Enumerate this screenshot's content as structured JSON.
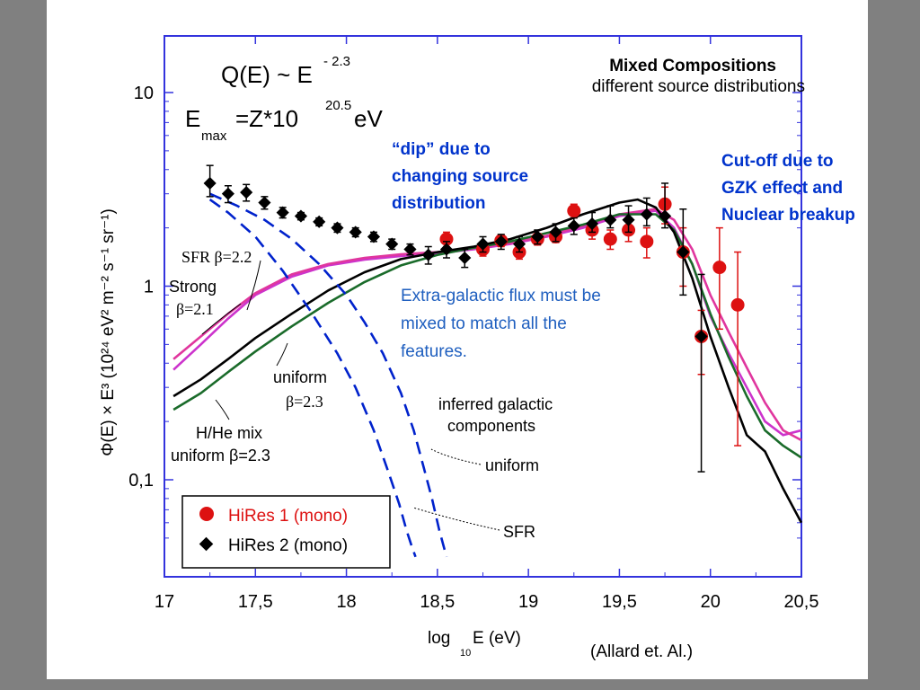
{
  "chart_data": {
    "type": "line",
    "title": "Mixed Compositions",
    "subtitle": "different source distributions",
    "formula_q": "Q(E) ~ E",
    "formula_q_exp": "- 2.3",
    "formula_emax_e": "E",
    "formula_emax_sub": "max",
    "formula_emax_rest": "=Z*10",
    "formula_emax_exp": "20.5",
    "formula_emax_unit": " eV",
    "xlabel": "log",
    "xlabel_sub": "10",
    "xlabel_rest": " E (eV)",
    "ylabel": "Φ(E) × E³ (10²⁴ eV² m⁻² s⁻¹ sr⁻¹)",
    "xlim": [
      17,
      20.5
    ],
    "ylim": [
      0.04,
      15
    ],
    "yscale": "log",
    "xticks": [
      {
        "value": 17,
        "label": "17"
      },
      {
        "value": 17.5,
        "label": "17,5"
      },
      {
        "value": 18,
        "label": "18"
      },
      {
        "value": 18.5,
        "label": "18,5"
      },
      {
        "value": 19,
        "label": "19"
      },
      {
        "value": 19.5,
        "label": "19,5"
      },
      {
        "value": 20,
        "label": "20"
      },
      {
        "value": 20.5,
        "label": "20,5"
      }
    ],
    "yticks": [
      {
        "value": 10,
        "label": "10"
      },
      {
        "value": 1,
        "label": "1"
      },
      {
        "value": 0.1,
        "label": "0,1"
      }
    ],
    "series": [
      {
        "name": "SFR β=2.2",
        "kind": "model",
        "color": "#cc33cc",
        "x": [
          17.05,
          17.2,
          17.35,
          17.5,
          17.7,
          17.9,
          18.1,
          18.3,
          18.5,
          18.7,
          18.9,
          19.1,
          19.3,
          19.5,
          19.7,
          19.8,
          19.9,
          20,
          20.1,
          20.2,
          20.3,
          20.4,
          20.5
        ],
        "y": [
          0.37,
          0.5,
          0.68,
          0.9,
          1.12,
          1.28,
          1.37,
          1.43,
          1.48,
          1.55,
          1.65,
          1.8,
          2.0,
          2.3,
          2.45,
          2.0,
          1.3,
          0.7,
          0.45,
          0.3,
          0.2,
          0.17,
          0.18
        ]
      },
      {
        "name": "Strong β=2.1",
        "kind": "model",
        "color": "#e0369e",
        "x": [
          17.05,
          17.2,
          17.35,
          17.5,
          17.7,
          17.9,
          18.1,
          18.3,
          18.5,
          18.7,
          18.9,
          19.1,
          19.3,
          19.5,
          19.7,
          19.8,
          19.9,
          20,
          20.1,
          20.2,
          20.3,
          20.4,
          20.5
        ],
        "y": [
          0.42,
          0.55,
          0.72,
          0.92,
          1.15,
          1.3,
          1.4,
          1.46,
          1.5,
          1.57,
          1.67,
          1.82,
          2.05,
          2.35,
          2.5,
          2.2,
          1.55,
          0.9,
          0.58,
          0.38,
          0.25,
          0.18,
          0.16
        ]
      },
      {
        "name": "uniform β=2.3",
        "kind": "model",
        "color": "#1a6b2a",
        "x": [
          17.05,
          17.2,
          17.35,
          17.5,
          17.7,
          17.9,
          18.1,
          18.3,
          18.5,
          18.7,
          18.9,
          19.1,
          19.3,
          19.5,
          19.7,
          19.8,
          19.9,
          20,
          20.1,
          20.2,
          20.3,
          20.4,
          20.5
        ],
        "y": [
          0.23,
          0.28,
          0.36,
          0.46,
          0.62,
          0.82,
          1.05,
          1.28,
          1.45,
          1.58,
          1.7,
          1.88,
          2.08,
          2.35,
          2.35,
          1.95,
          1.3,
          0.72,
          0.43,
          0.27,
          0.18,
          0.15,
          0.13
        ]
      },
      {
        "name": "H/He mix uniform β=2.3",
        "kind": "model",
        "color": "#000000",
        "x": [
          17.05,
          17.2,
          17.35,
          17.5,
          17.7,
          17.9,
          18.1,
          18.3,
          18.5,
          18.7,
          18.9,
          19.1,
          19.3,
          19.5,
          19.6,
          19.7,
          19.8,
          19.9,
          20,
          20.1,
          20.2,
          20.3,
          20.4,
          20.5
        ],
        "y": [
          0.27,
          0.33,
          0.42,
          0.54,
          0.72,
          0.95,
          1.18,
          1.38,
          1.5,
          1.6,
          1.75,
          2.0,
          2.35,
          2.7,
          2.8,
          2.55,
          1.9,
          1.1,
          0.55,
          0.3,
          0.17,
          0.14,
          0.09,
          0.06
        ]
      },
      {
        "name": "inferred galactic components: uniform",
        "kind": "dashed",
        "color": "#0022cc",
        "x": [
          17.25,
          17.4,
          17.55,
          17.7,
          17.85,
          18.0,
          18.1,
          18.2,
          18.3,
          18.37,
          18.42,
          18.47,
          18.51,
          18.55
        ],
        "y": [
          3.0,
          2.6,
          2.2,
          1.75,
          1.3,
          0.9,
          0.65,
          0.45,
          0.28,
          0.18,
          0.12,
          0.08,
          0.055,
          0.04
        ]
      },
      {
        "name": "inferred galactic components: SFR",
        "kind": "dashed",
        "color": "#0022cc",
        "x": [
          17.25,
          17.35,
          17.5,
          17.65,
          17.8,
          17.95,
          18.05,
          18.15,
          18.23,
          18.29,
          18.33,
          18.36,
          18.38
        ],
        "y": [
          2.8,
          2.4,
          1.8,
          1.2,
          0.75,
          0.45,
          0.3,
          0.18,
          0.11,
          0.075,
          0.055,
          0.045,
          0.04
        ]
      },
      {
        "name": "HiRes 1 (mono)",
        "kind": "points",
        "color": "#dd1111",
        "x": [
          18.55,
          18.75,
          18.85,
          18.95,
          19.05,
          19.15,
          19.25,
          19.35,
          19.45,
          19.55,
          19.65,
          19.75,
          19.85,
          19.95,
          20.05,
          20.15
        ],
        "y": [
          1.75,
          1.55,
          1.72,
          1.5,
          1.75,
          1.8,
          2.45,
          1.95,
          1.75,
          1.95,
          1.7,
          2.65,
          1.5,
          0.55,
          1.25,
          0.8
        ],
        "err_lo": [
          0.15,
          0.12,
          0.12,
          0.12,
          0.12,
          0.12,
          0.2,
          0.2,
          0.2,
          0.25,
          0.3,
          0.55,
          0.5,
          0.2,
          0.65,
          0.65
        ],
        "err_hi": [
          0.15,
          0.12,
          0.12,
          0.12,
          0.12,
          0.12,
          0.2,
          0.2,
          0.2,
          0.25,
          0.3,
          0.6,
          0.5,
          0.2,
          0.75,
          0.7
        ]
      },
      {
        "name": "HiRes 2 (mono)",
        "kind": "points",
        "color": "#000000",
        "x": [
          17.25,
          17.35,
          17.45,
          17.55,
          17.65,
          17.75,
          17.85,
          17.95,
          18.05,
          18.15,
          18.25,
          18.35,
          18.45,
          18.55,
          18.65,
          18.75,
          18.85,
          18.95,
          19.05,
          19.15,
          19.25,
          19.35,
          19.45,
          19.55,
          19.65,
          19.75,
          19.85,
          19.95
        ],
        "y": [
          3.4,
          3.0,
          3.05,
          2.7,
          2.4,
          2.3,
          2.15,
          2.0,
          1.9,
          1.8,
          1.65,
          1.55,
          1.45,
          1.55,
          1.4,
          1.65,
          1.7,
          1.65,
          1.8,
          1.9,
          2.05,
          2.1,
          2.2,
          2.2,
          2.35,
          2.3,
          1.5,
          0.55
        ],
        "err_lo": [
          0.5,
          0.3,
          0.3,
          0.2,
          0.15,
          0.1,
          0.1,
          0.1,
          0.1,
          0.1,
          0.1,
          0.1,
          0.15,
          0.15,
          0.15,
          0.15,
          0.15,
          0.15,
          0.15,
          0.2,
          0.2,
          0.2,
          0.2,
          0.3,
          0.3,
          0.3,
          0.6,
          0.44
        ],
        "err_hi": [
          0.8,
          0.3,
          0.3,
          0.2,
          0.15,
          0.1,
          0.1,
          0.1,
          0.1,
          0.1,
          0.1,
          0.1,
          0.15,
          0.15,
          0.15,
          0.15,
          0.15,
          0.15,
          0.15,
          0.2,
          0.2,
          0.3,
          0.4,
          0.4,
          0.5,
          1.1,
          1.0,
          0.6
        ]
      }
    ],
    "curve_labels": [
      {
        "key": "sfr_label",
        "text": "SFR β=2.2"
      },
      {
        "key": "strong_label_1",
        "text": "Strong"
      },
      {
        "key": "strong_label_2",
        "text": "β=2.1"
      },
      {
        "key": "uniform_label_1",
        "text": "uniform"
      },
      {
        "key": "uniform_label_2",
        "text": "β=2.3"
      },
      {
        "key": "hhe_label_1",
        "text": "H/He mix"
      },
      {
        "key": "hhe_label_2",
        "text": "uniform β=2.3"
      },
      {
        "key": "gal_label_1",
        "text": "inferred galactic"
      },
      {
        "key": "gal_label_2",
        "text": "components"
      },
      {
        "key": "gal_uniform_label",
        "text": "uniform"
      },
      {
        "key": "gal_sfr_label",
        "text": "SFR"
      }
    ],
    "legend": {
      "placement": "bottom-left",
      "entries": [
        {
          "label": "HiRes 1 (mono)",
          "color": "#dd1111",
          "marker": "circle"
        },
        {
          "label": "HiRes 2 (mono)",
          "color": "#000000",
          "marker": "diamond"
        }
      ]
    }
  },
  "annotations": {
    "dip_line_1": "“dip” due to",
    "dip_line_2": "changing source",
    "dip_line_3": "distribution",
    "cutoff_line_1": "Cut-off due to",
    "cutoff_line_2": "GZK effect and",
    "cutoff_line_3": "Nuclear breakup",
    "extra_line_1": "Extra-galactic flux must be",
    "extra_line_2": "mixed to match all the",
    "extra_line_3": "features."
  },
  "citation": "(Allard et. Al.)",
  "colors": {
    "frame": "#3333dd",
    "annotation_bold": "#0033cc",
    "annotation_blue": "#1f5fbf"
  }
}
